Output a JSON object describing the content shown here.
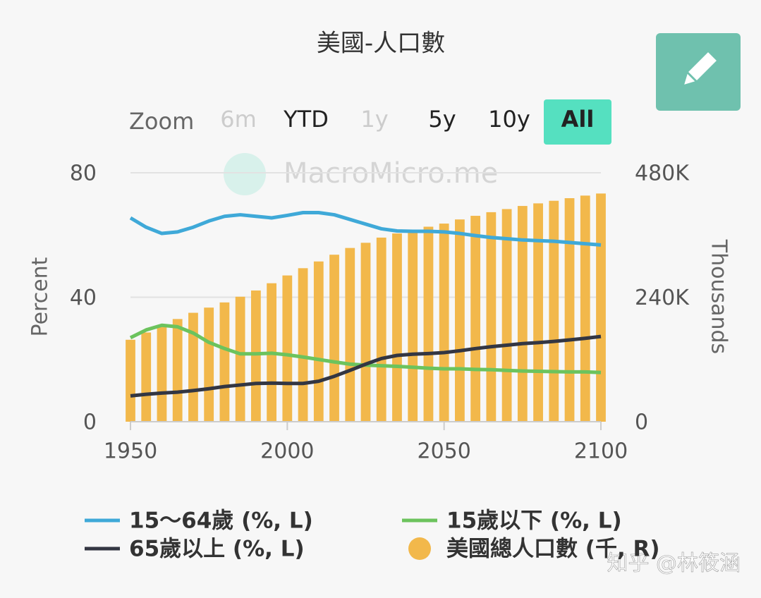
{
  "chart_data": {
    "type": "bar-line",
    "title": "美國-人口數",
    "watermark": "MacroMicro.me",
    "credit": "知乎 @林筱涵",
    "zoom": {
      "label": "Zoom",
      "buttons": [
        {
          "label": "6m",
          "state": "disabled"
        },
        {
          "label": "YTD",
          "state": "enabled"
        },
        {
          "label": "1y",
          "state": "disabled"
        },
        {
          "label": "5y",
          "state": "enabled"
        },
        {
          "label": "10y",
          "state": "enabled"
        },
        {
          "label": "All",
          "state": "selected"
        }
      ]
    },
    "y_label": "Percent",
    "y2_label": "Thousands",
    "x": [
      1950,
      1955,
      1960,
      1965,
      1970,
      1975,
      1980,
      1985,
      1990,
      1995,
      2000,
      2005,
      2010,
      2015,
      2020,
      2025,
      2030,
      2035,
      2040,
      2045,
      2050,
      2055,
      2060,
      2065,
      2070,
      2075,
      2080,
      2085,
      2090,
      2095,
      2100
    ],
    "xlim": [
      1950,
      2100
    ],
    "xticks": [
      1950,
      2000,
      2050,
      2100
    ],
    "ylim": [
      0,
      80
    ],
    "yticks": [
      0,
      40,
      80
    ],
    "y2lim": [
      0,
      480000
    ],
    "y2ticks": [
      0,
      {
        "value": 240000,
        "label": "240K"
      },
      {
        "value": 480000,
        "label": "480K"
      }
    ],
    "grid": true,
    "series": [
      {
        "name": "15～64歲 (%, L)",
        "type": "line",
        "color": "#3fa9d8",
        "values": [
          65.5,
          62.5,
          60.5,
          61,
          62.5,
          64.5,
          66,
          66.5,
          66,
          65.5,
          66.3,
          67.2,
          67.2,
          66.5,
          65,
          63.5,
          62,
          61.3,
          61.2,
          61.2,
          61,
          60.5,
          59.8,
          59.2,
          58.8,
          58.4,
          58.2,
          58,
          57.6,
          57.2,
          56.8
        ]
      },
      {
        "name": "15歲以下 (%, L)",
        "type": "line",
        "color": "#6cc35d",
        "values": [
          27,
          29.5,
          31,
          30.5,
          28.5,
          25.5,
          23.5,
          21.8,
          21.8,
          22,
          21.5,
          20.8,
          20,
          19.2,
          18.5,
          18.2,
          18,
          17.8,
          17.5,
          17.2,
          17,
          17,
          16.8,
          16.7,
          16.5,
          16.3,
          16.2,
          16.1,
          16,
          16,
          15.8
        ]
      },
      {
        "name": "65歲以上 (%, L)",
        "type": "line",
        "color": "#333642",
        "values": [
          8.3,
          8.8,
          9.2,
          9.5,
          10,
          10.6,
          11.3,
          11.8,
          12.3,
          12.4,
          12.3,
          12.3,
          13,
          14.6,
          16.5,
          18.5,
          20.3,
          21.3,
          21.7,
          21.9,
          22.2,
          22.8,
          23.5,
          24.1,
          24.6,
          25.1,
          25.4,
          25.8,
          26.3,
          26.8,
          27.4
        ]
      },
      {
        "name": "美國總人口數 (千, R)",
        "type": "bar",
        "axis": "y2",
        "color": "#f2b84b",
        "values": [
          158000,
          172000,
          186000,
          198000,
          210000,
          220000,
          230000,
          241000,
          253000,
          267000,
          282000,
          296000,
          309000,
          322000,
          335000,
          345000,
          355000,
          363000,
          370000,
          376000,
          382000,
          390000,
          397000,
          404000,
          410000,
          416000,
          421000,
          426000,
          431000,
          436000,
          440000
        ]
      }
    ]
  }
}
